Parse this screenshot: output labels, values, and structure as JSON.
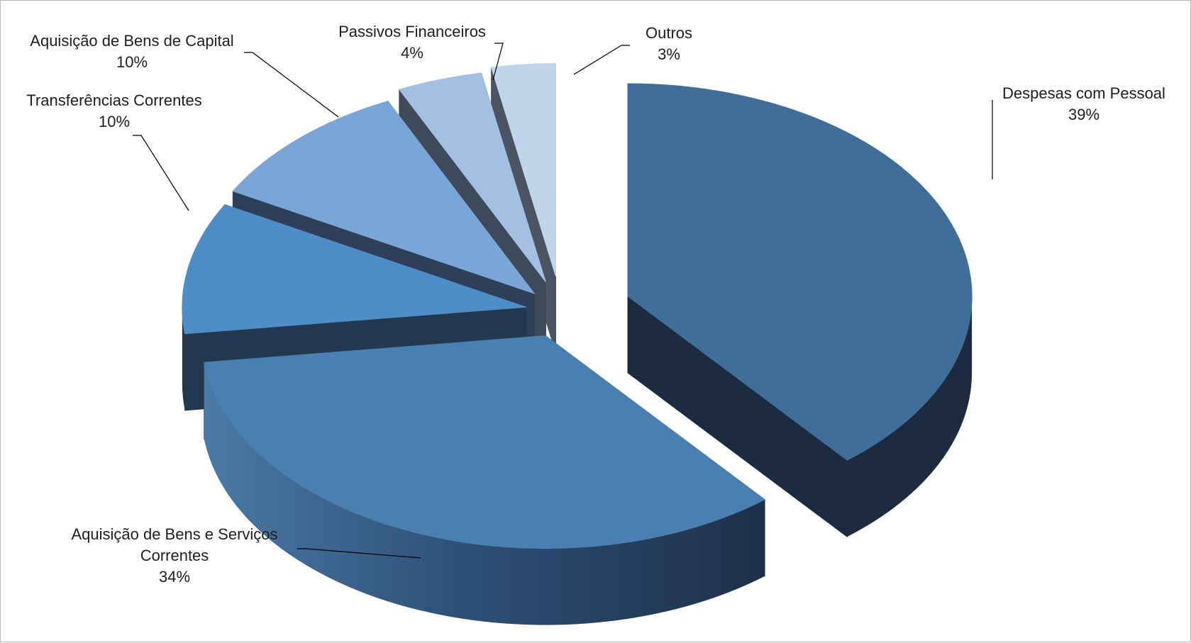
{
  "chart_data": {
    "type": "pie",
    "title": "",
    "legend": "none",
    "style": "3d-exploded",
    "categories": [
      "Despesas com Pessoal",
      "Aquisição de Bens e Serviços Correntes",
      "Transferências Correntes",
      "Aquisição de Bens de Capital",
      "Passivos Financeiros",
      "Outros"
    ],
    "values": [
      39,
      34,
      10,
      10,
      4,
      3
    ],
    "value_labels": [
      "39%",
      "34%",
      "10%",
      "10%",
      "4%",
      "3%"
    ],
    "label_lines": [
      [
        "Despesas com Pessoal"
      ],
      [
        "Aquisição de Bens e Serviços",
        "Correntes"
      ],
      [
        "Transferências Correntes"
      ],
      [
        "Aquisição de Bens de Capital"
      ],
      [
        "Passivos Financeiros"
      ],
      [
        "Outros"
      ]
    ],
    "colors": [
      "#3f6e99",
      "#4a7fb1",
      "#4f8dc6",
      "#79a6d6",
      "#a3bfe2",
      "#c0d4ea"
    ],
    "side_colors": [
      "#1c2b3f",
      "#233a55",
      "#22384f",
      "#2d4057",
      "#3e4a5a",
      "#4b5462"
    ]
  }
}
